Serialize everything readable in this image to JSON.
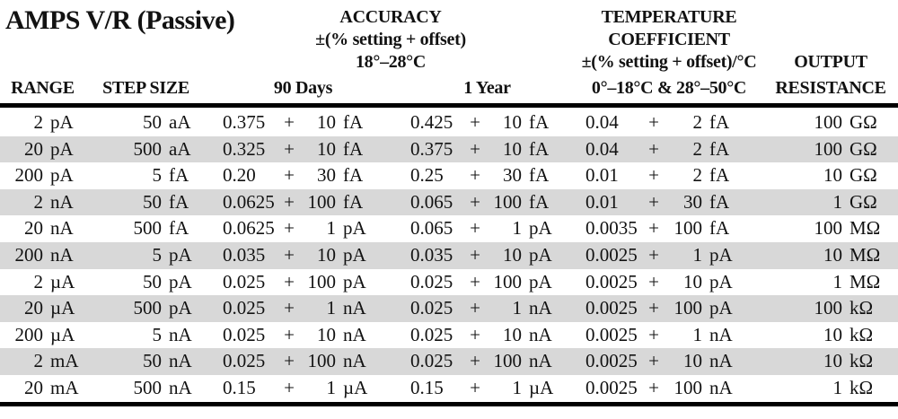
{
  "title": "AMPS V/R (Passive)",
  "header": {
    "accuracy": {
      "line1": "ACCURACY",
      "line2": "±(% setting + offset)",
      "line3": "18°–28°C"
    },
    "temp_coefficient": {
      "line1": "TEMPERATURE",
      "line2": "COEFFICIENT",
      "line3": "±(% setting + offset)/°C",
      "range_label": "0°–18°C & 28°–50°C"
    },
    "output": {
      "line1": "OUTPUT",
      "line2": "RESISTANCE"
    },
    "columns": {
      "range": "RANGE",
      "step_size": "STEP SIZE",
      "days90": "90 Days",
      "year1": "1 Year"
    }
  },
  "symbols": {
    "plus": "+"
  },
  "table": {
    "rows": [
      {
        "range_num": "2",
        "range_unit": "pA",
        "step_num": "50",
        "step_unit": "aA",
        "d90_pct": "0.375",
        "d90_off": "10",
        "d90_unit": "fA",
        "y1_pct": "0.425",
        "y1_off": "10",
        "y1_unit": "fA",
        "tc_pct": "0.04",
        "tc_off": "2",
        "tc_unit": "fA",
        "out_num": "100",
        "out_unit": "GΩ"
      },
      {
        "range_num": "20",
        "range_unit": "pA",
        "step_num": "500",
        "step_unit": "aA",
        "d90_pct": "0.325",
        "d90_off": "10",
        "d90_unit": "fA",
        "y1_pct": "0.375",
        "y1_off": "10",
        "y1_unit": "fA",
        "tc_pct": "0.04",
        "tc_off": "2",
        "tc_unit": "fA",
        "out_num": "100",
        "out_unit": "GΩ"
      },
      {
        "range_num": "200",
        "range_unit": "pA",
        "step_num": "5",
        "step_unit": "fA",
        "d90_pct": "0.20",
        "d90_off": "30",
        "d90_unit": "fA",
        "y1_pct": "0.25",
        "y1_off": "30",
        "y1_unit": "fA",
        "tc_pct": "0.01",
        "tc_off": "2",
        "tc_unit": "fA",
        "out_num": "10",
        "out_unit": "GΩ"
      },
      {
        "range_num": "2",
        "range_unit": "nA",
        "step_num": "50",
        "step_unit": "fA",
        "d90_pct": "0.0625",
        "d90_off": "100",
        "d90_unit": "fA",
        "y1_pct": "0.065",
        "y1_off": "100",
        "y1_unit": "fA",
        "tc_pct": "0.01",
        "tc_off": "30",
        "tc_unit": "fA",
        "out_num": "1",
        "out_unit": "GΩ"
      },
      {
        "range_num": "20",
        "range_unit": "nA",
        "step_num": "500",
        "step_unit": "fA",
        "d90_pct": "0.0625",
        "d90_off": "1",
        "d90_unit": "pA",
        "y1_pct": "0.065",
        "y1_off": "1",
        "y1_unit": "pA",
        "tc_pct": "0.0035",
        "tc_off": "100",
        "tc_unit": "fA",
        "out_num": "100",
        "out_unit": "MΩ"
      },
      {
        "range_num": "200",
        "range_unit": "nA",
        "step_num": "5",
        "step_unit": "pA",
        "d90_pct": "0.035",
        "d90_off": "10",
        "d90_unit": "pA",
        "y1_pct": "0.035",
        "y1_off": "10",
        "y1_unit": "pA",
        "tc_pct": "0.0025",
        "tc_off": "1",
        "tc_unit": "pA",
        "out_num": "10",
        "out_unit": "MΩ"
      },
      {
        "range_num": "2",
        "range_unit": "µA",
        "step_num": "50",
        "step_unit": "pA",
        "d90_pct": "0.025",
        "d90_off": "100",
        "d90_unit": "pA",
        "y1_pct": "0.025",
        "y1_off": "100",
        "y1_unit": "pA",
        "tc_pct": "0.0025",
        "tc_off": "10",
        "tc_unit": "pA",
        "out_num": "1",
        "out_unit": "MΩ"
      },
      {
        "range_num": "20",
        "range_unit": "µA",
        "step_num": "500",
        "step_unit": "pA",
        "d90_pct": "0.025",
        "d90_off": "1",
        "d90_unit": "nA",
        "y1_pct": "0.025",
        "y1_off": "1",
        "y1_unit": "nA",
        "tc_pct": "0.0025",
        "tc_off": "100",
        "tc_unit": "pA",
        "out_num": "100",
        "out_unit": "kΩ"
      },
      {
        "range_num": "200",
        "range_unit": "µA",
        "step_num": "5",
        "step_unit": "nA",
        "d90_pct": "0.025",
        "d90_off": "10",
        "d90_unit": "nA",
        "y1_pct": "0.025",
        "y1_off": "10",
        "y1_unit": "nA",
        "tc_pct": "0.0025",
        "tc_off": "1",
        "tc_unit": "nA",
        "out_num": "10",
        "out_unit": "kΩ"
      },
      {
        "range_num": "2",
        "range_unit": "mA",
        "step_num": "50",
        "step_unit": "nA",
        "d90_pct": "0.025",
        "d90_off": "100",
        "d90_unit": "nA",
        "y1_pct": "0.025",
        "y1_off": "100",
        "y1_unit": "nA",
        "tc_pct": "0.0025",
        "tc_off": "10",
        "tc_unit": "nA",
        "out_num": "10",
        "out_unit": "kΩ"
      },
      {
        "range_num": "20",
        "range_unit": "mA",
        "step_num": "500",
        "step_unit": "nA",
        "d90_pct": "0.15",
        "d90_off": "1",
        "d90_unit": "µA",
        "y1_pct": "0.15",
        "y1_off": "1",
        "y1_unit": "µA",
        "tc_pct": "0.0025",
        "tc_off": "100",
        "tc_unit": "nA",
        "out_num": "1",
        "out_unit": "kΩ"
      }
    ]
  },
  "colors": {
    "stripe_gray": "#d8d8d8",
    "text": "#121212",
    "rule": "#000000",
    "background": "#ffffff"
  }
}
